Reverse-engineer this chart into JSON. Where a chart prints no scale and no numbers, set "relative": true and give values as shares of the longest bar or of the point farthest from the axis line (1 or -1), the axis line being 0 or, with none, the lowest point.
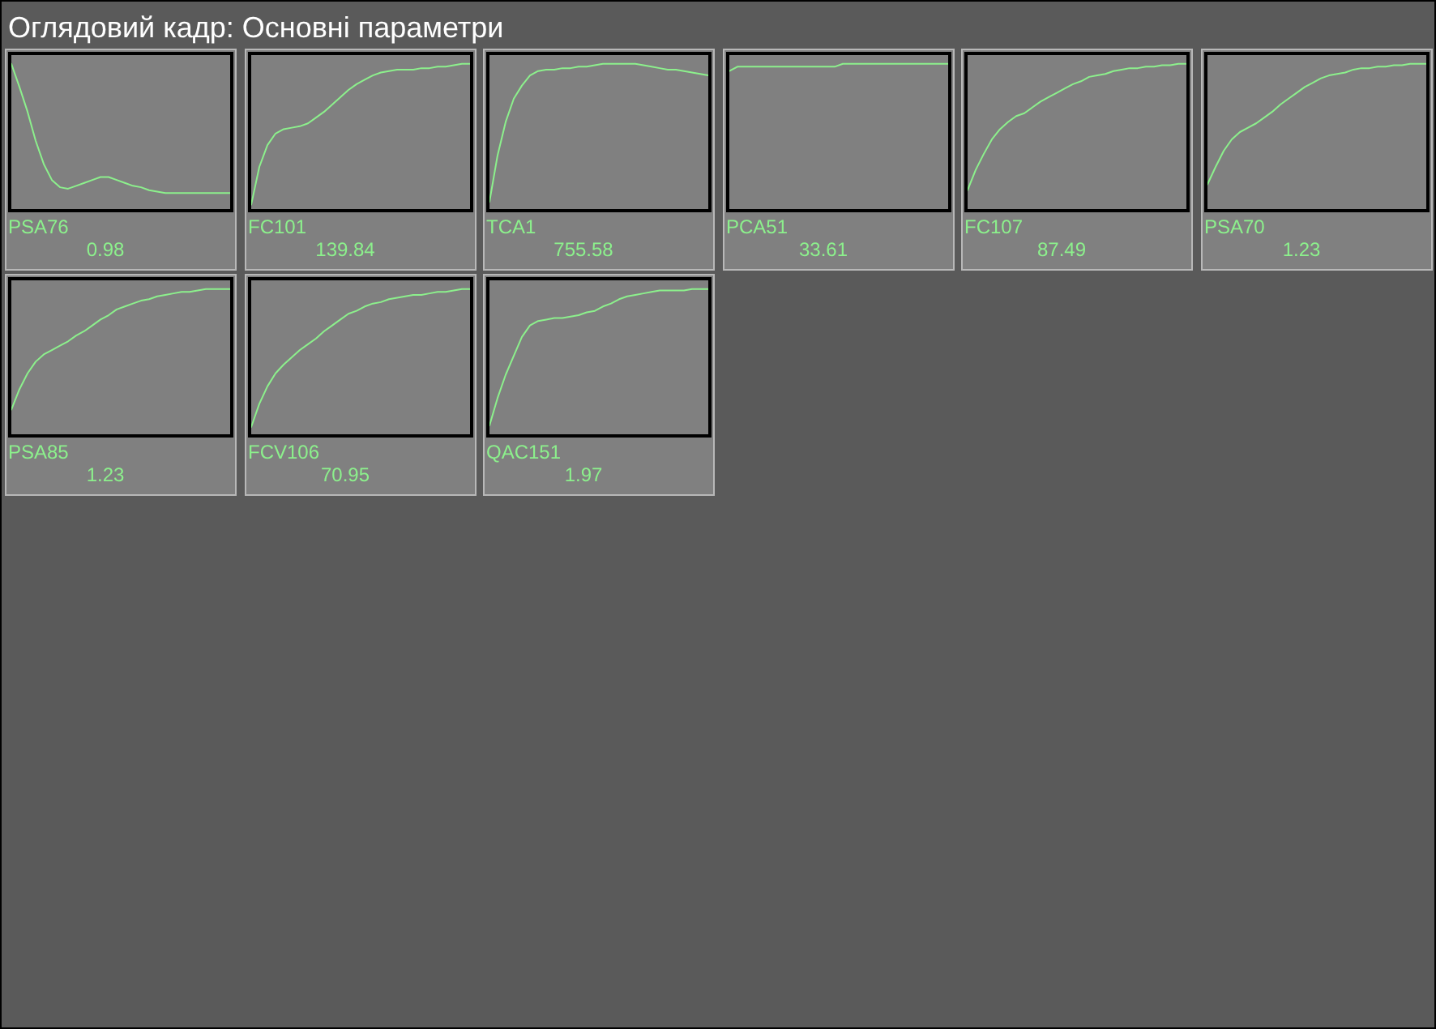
{
  "chart_data": [
    {
      "type": "other",
      "title": "Оглядовий кадр: Основні параметри"
    },
    {
      "type": "line",
      "relative": true,
      "title": "PSA76",
      "annotations": [
        "0.98"
      ],
      "color": "#8cf08c",
      "categories": [
        null,
        null,
        null,
        null,
        null,
        null,
        null,
        null,
        null,
        null,
        null,
        null,
        null,
        null,
        null,
        null,
        null,
        null,
        null,
        null,
        null,
        null,
        null,
        null,
        null,
        null,
        null,
        null
      ],
      "values": [
        1.0,
        0.84,
        0.67,
        0.47,
        0.31,
        0.2,
        0.15,
        0.14,
        0.16,
        0.18,
        0.2,
        0.22,
        0.22,
        0.2,
        0.18,
        0.16,
        0.15,
        0.13,
        0.12,
        0.11,
        0.11,
        0.11,
        0.11,
        0.11,
        0.11,
        0.11,
        0.11,
        0.11
      ]
    },
    {
      "type": "line",
      "relative": true,
      "title": "FC101",
      "annotations": [
        "139.84"
      ],
      "color": "#8cf08c",
      "categories": [
        null,
        null,
        null,
        null,
        null,
        null,
        null,
        null,
        null,
        null,
        null,
        null,
        null,
        null,
        null,
        null,
        null,
        null,
        null,
        null,
        null,
        null,
        null,
        null,
        null,
        null,
        null,
        null
      ],
      "values": [
        0.03,
        0.29,
        0.44,
        0.52,
        0.55,
        0.56,
        0.57,
        0.59,
        0.63,
        0.67,
        0.72,
        0.77,
        0.82,
        0.86,
        0.89,
        0.92,
        0.94,
        0.95,
        0.96,
        0.96,
        0.96,
        0.97,
        0.97,
        0.98,
        0.98,
        0.99,
        1.0,
        1.0
      ]
    },
    {
      "type": "line",
      "relative": true,
      "title": "TCA1",
      "annotations": [
        "755.58"
      ],
      "color": "#8cf08c",
      "categories": [
        null,
        null,
        null,
        null,
        null,
        null,
        null,
        null,
        null,
        null,
        null,
        null,
        null,
        null,
        null,
        null,
        null,
        null,
        null,
        null,
        null,
        null,
        null,
        null,
        null,
        null,
        null,
        null
      ],
      "values": [
        0.05,
        0.37,
        0.6,
        0.76,
        0.85,
        0.92,
        0.95,
        0.96,
        0.96,
        0.97,
        0.97,
        0.98,
        0.98,
        0.99,
        1.0,
        1.0,
        1.0,
        1.0,
        1.0,
        0.99,
        0.98,
        0.97,
        0.96,
        0.96,
        0.95,
        0.94,
        0.93,
        0.92
      ]
    },
    {
      "type": "line",
      "relative": true,
      "title": "PCA51",
      "annotations": [
        "33.61"
      ],
      "color": "#8cf08c",
      "categories": [
        null,
        null,
        null,
        null,
        null,
        null,
        null,
        null,
        null,
        null,
        null,
        null,
        null,
        null,
        null,
        null,
        null,
        null,
        null,
        null,
        null,
        null,
        null,
        null,
        null,
        null,
        null,
        null
      ],
      "values": [
        0.95,
        0.98,
        0.98,
        0.98,
        0.98,
        0.98,
        0.98,
        0.98,
        0.98,
        0.98,
        0.98,
        0.98,
        0.98,
        0.98,
        1.0,
        1.0,
        1.0,
        1.0,
        1.0,
        1.0,
        1.0,
        1.0,
        1.0,
        1.0,
        1.0,
        1.0,
        1.0,
        1.0
      ]
    },
    {
      "type": "line",
      "relative": true,
      "title": "FC107",
      "annotations": [
        "87.49"
      ],
      "color": "#8cf08c",
      "categories": [
        null,
        null,
        null,
        null,
        null,
        null,
        null,
        null,
        null,
        null,
        null,
        null,
        null,
        null,
        null,
        null,
        null,
        null,
        null,
        null,
        null,
        null,
        null,
        null,
        null,
        null,
        null,
        null
      ],
      "values": [
        0.13,
        0.27,
        0.38,
        0.48,
        0.55,
        0.6,
        0.64,
        0.66,
        0.7,
        0.74,
        0.77,
        0.8,
        0.83,
        0.86,
        0.88,
        0.91,
        0.92,
        0.93,
        0.95,
        0.96,
        0.97,
        0.97,
        0.98,
        0.98,
        0.99,
        0.99,
        1.0,
        1.0
      ]
    },
    {
      "type": "line",
      "relative": true,
      "title": "PSA70",
      "annotations": [
        "1.23"
      ],
      "color": "#8cf08c",
      "categories": [
        null,
        null,
        null,
        null,
        null,
        null,
        null,
        null,
        null,
        null,
        null,
        null,
        null,
        null,
        null,
        null,
        null,
        null,
        null,
        null,
        null,
        null,
        null,
        null,
        null,
        null,
        null,
        null
      ],
      "values": [
        0.17,
        0.29,
        0.4,
        0.48,
        0.53,
        0.56,
        0.59,
        0.63,
        0.67,
        0.72,
        0.76,
        0.8,
        0.84,
        0.87,
        0.9,
        0.92,
        0.93,
        0.94,
        0.96,
        0.97,
        0.97,
        0.98,
        0.98,
        0.99,
        0.99,
        1.0,
        1.0,
        1.0
      ]
    },
    {
      "type": "line",
      "relative": true,
      "title": "PSA85",
      "annotations": [
        "1.23"
      ],
      "color": "#8cf08c",
      "categories": [
        null,
        null,
        null,
        null,
        null,
        null,
        null,
        null,
        null,
        null,
        null,
        null,
        null,
        null,
        null,
        null,
        null,
        null,
        null,
        null,
        null,
        null,
        null,
        null,
        null,
        null,
        null,
        null
      ],
      "values": [
        0.17,
        0.31,
        0.42,
        0.5,
        0.55,
        0.58,
        0.61,
        0.64,
        0.68,
        0.71,
        0.75,
        0.79,
        0.82,
        0.86,
        0.88,
        0.9,
        0.92,
        0.93,
        0.95,
        0.96,
        0.97,
        0.98,
        0.98,
        0.99,
        1.0,
        1.0,
        1.0,
        1.0
      ]
    },
    {
      "type": "line",
      "relative": true,
      "title": "FCV106",
      "annotations": [
        "70.95"
      ],
      "color": "#8cf08c",
      "categories": [
        null,
        null,
        null,
        null,
        null,
        null,
        null,
        null,
        null,
        null,
        null,
        null,
        null,
        null,
        null,
        null,
        null,
        null,
        null,
        null,
        null,
        null,
        null,
        null,
        null,
        null,
        null,
        null
      ],
      "values": [
        0.05,
        0.21,
        0.33,
        0.42,
        0.48,
        0.53,
        0.58,
        0.62,
        0.66,
        0.71,
        0.75,
        0.79,
        0.83,
        0.85,
        0.88,
        0.9,
        0.91,
        0.93,
        0.94,
        0.95,
        0.96,
        0.96,
        0.97,
        0.98,
        0.98,
        0.99,
        1.0,
        1.0
      ]
    },
    {
      "type": "line",
      "relative": true,
      "title": "QAC151",
      "annotations": [
        "1.97"
      ],
      "color": "#8cf08c",
      "categories": [
        null,
        null,
        null,
        null,
        null,
        null,
        null,
        null,
        null,
        null,
        null,
        null,
        null,
        null,
        null,
        null,
        null,
        null,
        null,
        null,
        null,
        null,
        null,
        null,
        null,
        null,
        null,
        null
      ],
      "values": [
        0.06,
        0.25,
        0.41,
        0.54,
        0.67,
        0.75,
        0.78,
        0.79,
        0.8,
        0.8,
        0.81,
        0.82,
        0.84,
        0.85,
        0.88,
        0.9,
        0.93,
        0.95,
        0.96,
        0.97,
        0.98,
        0.99,
        0.99,
        0.99,
        0.99,
        1.0,
        1.0,
        1.0
      ]
    }
  ]
}
